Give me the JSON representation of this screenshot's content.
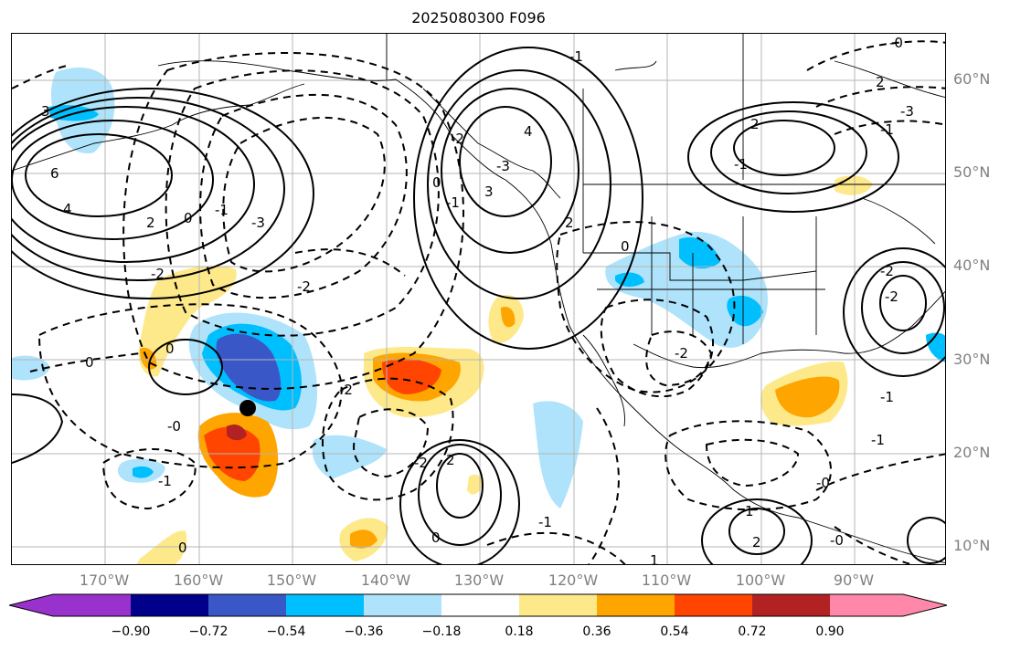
{
  "title": "2025080300 F096",
  "lat_labels": [
    "60°N",
    "50°N",
    "40°N",
    "30°N",
    "20°N",
    "10°N"
  ],
  "lon_labels": [
    "170°W",
    "160°W",
    "150°W",
    "140°W",
    "130°W",
    "120°W",
    "110°W",
    "100°W",
    "90°W"
  ],
  "colorbar": {
    "ticks": [
      "−0.90",
      "−0.72",
      "−0.54",
      "−0.36",
      "−0.18",
      "0.18",
      "0.36",
      "0.54",
      "0.72",
      "0.90"
    ],
    "colors": [
      "#9932cc",
      "#00008b",
      "#3a57c8",
      "#00bfff",
      "#aee3fb",
      "#ffffff",
      "#fde98a",
      "#ffa500",
      "#ff4500",
      "#b22222",
      "#ff88aa"
    ]
  },
  "contour_labels": [
    "3",
    "6",
    "4",
    "2",
    "0",
    "-1",
    "-3",
    "-2",
    "0",
    "0",
    "-0",
    "-2",
    "-1",
    "0",
    "-2",
    "-2",
    "2",
    "0",
    "0",
    "-1",
    "4",
    "-3",
    "-2",
    "3",
    "-1",
    "2",
    "0",
    "-2",
    "2",
    "-1",
    "-0",
    "2",
    "-1",
    "-3",
    "-2",
    "-2",
    "-1",
    "-1",
    "1",
    "2",
    "-0",
    "1",
    "-1",
    "-0"
  ],
  "marker": "black-dot"
}
